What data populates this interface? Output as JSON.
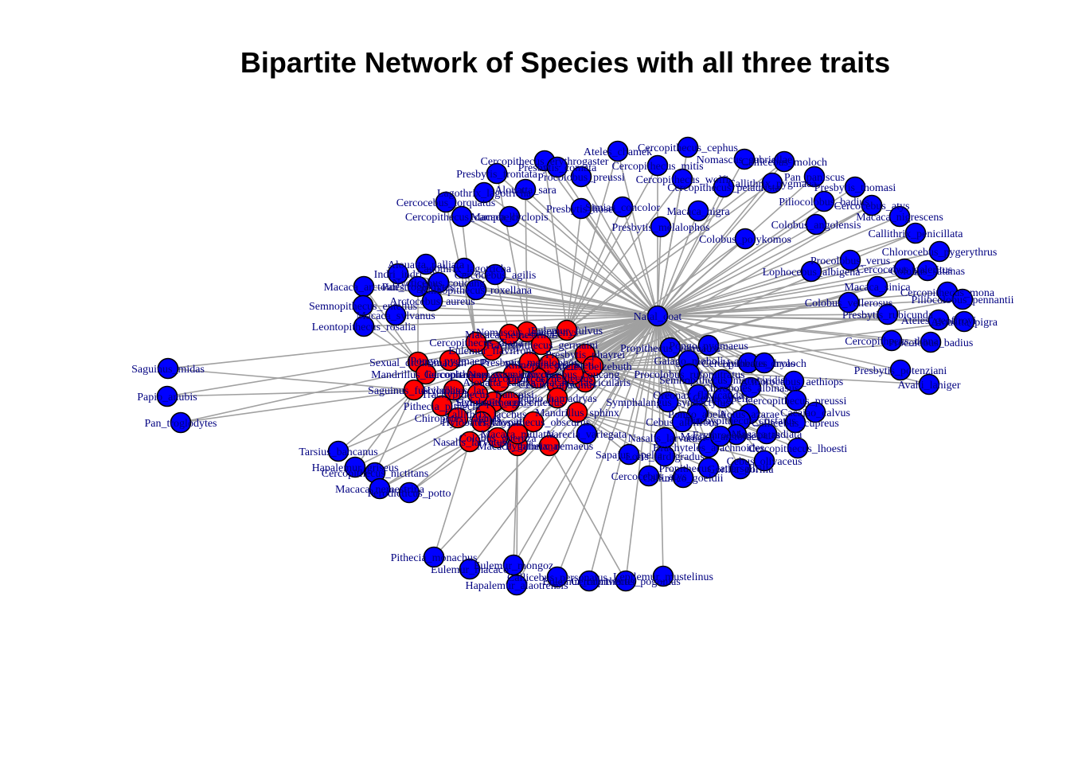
{
  "title": "Bipartite Network of Species with all three traits",
  "colors": {
    "trait": "#ff0000",
    "species": "#0000ff",
    "edge": "#a0a0a0",
    "label": "#000080"
  },
  "trait_nodes": [
    {
      "id": "T01",
      "label": "Natal_coat"
    },
    {
      "id": "T02",
      "label": "Sexual_dichromatism"
    },
    {
      "id": "T03",
      "label": "Mandrillus_leucophaeus"
    },
    {
      "id": "T04",
      "label": "Cercopithecus_ascanius"
    },
    {
      "id": "T05",
      "label": "Nomascus_leucogenys"
    },
    {
      "id": "T06",
      "label": "Macaca_nemestrina"
    },
    {
      "id": "T07",
      "label": "Eulemur_flavifrons"
    },
    {
      "id": "T08",
      "label": "Eulemur_fulvus"
    },
    {
      "id": "T09",
      "label": "Presbytis_phayrei"
    },
    {
      "id": "T10",
      "label": "Trachypithecus_germaini"
    },
    {
      "id": "T11",
      "label": "Nomascus_concolor"
    },
    {
      "id": "T12",
      "label": "Cercopithecus_diana"
    },
    {
      "id": "T13",
      "label": "Pongo_pygmaeus"
    },
    {
      "id": "T14",
      "label": "Saguinus_fuscicollis"
    },
    {
      "id": "T15",
      "label": "Hylobates_lar"
    },
    {
      "id": "T16",
      "label": "Pithecia_pithecia"
    },
    {
      "id": "T17",
      "label": "Chiropotes_satanas"
    },
    {
      "id": "T18",
      "label": "Mandrillus_sphinx"
    },
    {
      "id": "T19",
      "label": "Macaca_fascicularis"
    },
    {
      "id": "T20",
      "label": "Nasalis_larvatus"
    },
    {
      "id": "T21",
      "label": "Macaca_thibetana"
    },
    {
      "id": "T22",
      "label": "Rhinopithecus_bieti"
    },
    {
      "id": "T23",
      "label": "Cebus_capucinus"
    },
    {
      "id": "T24",
      "label": "Alouatta_caraya"
    },
    {
      "id": "T25",
      "label": "Cercopithecus_neglectus"
    },
    {
      "id": "T26",
      "label": "Trachypithecus_obscurus"
    },
    {
      "id": "T27",
      "label": "Hylobates_agilis"
    },
    {
      "id": "T28",
      "label": "Papio_hamadryas"
    },
    {
      "id": "T29",
      "label": "Semnopithecus_entellus"
    },
    {
      "id": "T30",
      "label": "Callithrix_jacchus"
    },
    {
      "id": "T31",
      "label": "Macaca_mulatta"
    },
    {
      "id": "T32",
      "label": "Ateles_belzebuth"
    },
    {
      "id": "T33",
      "label": "Pygathrix_nemaeus"
    },
    {
      "id": "T34",
      "label": "Trachypithecus_francoisi"
    },
    {
      "id": "T35",
      "label": "Nycticebus_coucang"
    },
    {
      "id": "T36",
      "label": "Presbytis_melalophos"
    },
    {
      "id": "T37",
      "label": "Hylobates_klossii"
    },
    {
      "id": "T38",
      "label": "Colobus_guereza"
    }
  ],
  "species_nodes": [
    {
      "id": "S001",
      "label": "Ateles_chamek"
    },
    {
      "id": "S002",
      "label": "Cercopithecus_cephus"
    },
    {
      "id": "S003",
      "label": "Cercopithecus_erythrogaster"
    },
    {
      "id": "S004",
      "label": "Presbytis_comata"
    },
    {
      "id": "S005",
      "label": "Cercopithecus_mitis"
    },
    {
      "id": "S006",
      "label": "Nomascus_gabriellae"
    },
    {
      "id": "S007",
      "label": "Callicebus_moloch"
    },
    {
      "id": "S008",
      "label": "Pan_paniscus"
    },
    {
      "id": "S009",
      "label": "Presbytis_frontata"
    },
    {
      "id": "S010",
      "label": "Procolobus_preussi"
    },
    {
      "id": "S011",
      "label": "Cercopithecus_wolfi"
    },
    {
      "id": "S012",
      "label": "Cercopithecus_petaurista"
    },
    {
      "id": "S013",
      "label": "Callithrix_pygmaea"
    },
    {
      "id": "S014",
      "label": "Presbytis_thomasi"
    },
    {
      "id": "S015",
      "label": "Alouatta_sara"
    },
    {
      "id": "S016",
      "label": "Lagothrix_lagotricha"
    },
    {
      "id": "S017",
      "label": "Simias_concolor"
    },
    {
      "id": "S018",
      "label": "Piliocolobus_badius"
    },
    {
      "id": "S019",
      "label": "Cercocebus_torquatus"
    },
    {
      "id": "S020",
      "label": "Macaca_nigra"
    },
    {
      "id": "S021",
      "label": "Cercocebus_atys"
    },
    {
      "id": "S022",
      "label": "Macaca_nigrescens"
    },
    {
      "id": "S023",
      "label": "Cercopithecus_campbelli"
    },
    {
      "id": "S024",
      "label": "Macaca_cyclopis"
    },
    {
      "id": "S025",
      "label": "Presbytis_hosei"
    },
    {
      "id": "S026",
      "label": "Presbytis_melalophos"
    },
    {
      "id": "S027",
      "label": "Colobus_polykomos"
    },
    {
      "id": "S028",
      "label": "Colobus_angolensis"
    },
    {
      "id": "S029",
      "label": "Callithrix_penicillata"
    },
    {
      "id": "S030",
      "label": "Chlorocebus_pygerythrus"
    },
    {
      "id": "S031",
      "label": "Procolobus_verus"
    },
    {
      "id": "S032",
      "label": "Cercocebus_galeritus"
    },
    {
      "id": "S033",
      "label": "Colobus_satanas"
    },
    {
      "id": "S034",
      "label": "Lophocebus_albigena"
    },
    {
      "id": "S035",
      "label": "Macaca_sinica"
    },
    {
      "id": "S036",
      "label": "Cercopithecus_mona"
    },
    {
      "id": "S037",
      "label": "Piliocolobus_pennantii"
    },
    {
      "id": "S038",
      "label": "Colobus_vellerosus"
    },
    {
      "id": "S039",
      "label": "Presbytis_rubicunda"
    },
    {
      "id": "S040",
      "label": "Ateles_geoffroyi"
    },
    {
      "id": "S041",
      "label": "Alouatta_pigra"
    },
    {
      "id": "S042",
      "label": "Cercopithecus_diana"
    },
    {
      "id": "S043",
      "label": "Procolobus_badius"
    },
    {
      "id": "S044",
      "label": "Presbytis_potenziani"
    },
    {
      "id": "S045",
      "label": "Avahi_laniger"
    },
    {
      "id": "S046",
      "label": "Alouatta_palliata"
    },
    {
      "id": "S047",
      "label": "Lagothrix_lagotricha"
    },
    {
      "id": "S048",
      "label": "Indri_indri"
    },
    {
      "id": "S049",
      "label": "Cercocebus_agilis"
    },
    {
      "id": "S050",
      "label": "Nycticebus_coucang"
    },
    {
      "id": "S051",
      "label": "Pan_troglodytes"
    },
    {
      "id": "S052",
      "label": "Rhinopithecus_roxellana"
    },
    {
      "id": "S053",
      "label": "Macaca_arctoides"
    },
    {
      "id": "S054",
      "label": "Arctocebus_aureus"
    },
    {
      "id": "S055",
      "label": "Semnopithecus_entellus"
    },
    {
      "id": "S056",
      "label": "Macaca_sylvanus"
    },
    {
      "id": "S057",
      "label": "Leontopithecus_rosalia"
    },
    {
      "id": "S058",
      "label": "Saguinus_midas"
    },
    {
      "id": "S059",
      "label": "Papio_anubis"
    },
    {
      "id": "S060",
      "label": "Pan_troglodytes"
    },
    {
      "id": "S061",
      "label": "Tarsius_bancanus"
    },
    {
      "id": "S062",
      "label": "Cercopithecus_nictitans"
    },
    {
      "id": "S063",
      "label": "Hapalemur_griseus"
    },
    {
      "id": "S064",
      "label": "Macaca_nemestrina"
    },
    {
      "id": "S065",
      "label": "Perodicticus_potto"
    },
    {
      "id": "S066",
      "label": "Propithecus_verreauxi"
    },
    {
      "id": "S067",
      "label": "Pongo_pygmaeus"
    },
    {
      "id": "S068",
      "label": "Galago_moholi"
    },
    {
      "id": "S069",
      "label": "Cercopithecus_dryas"
    },
    {
      "id": "S070",
      "label": "Semnopithecus_nigroviridis"
    },
    {
      "id": "S071",
      "label": "Hylobates_moloch"
    },
    {
      "id": "S072",
      "label": "Chlorocebus_aethiops"
    },
    {
      "id": "S073",
      "label": "Procolobus_rufomitratus"
    },
    {
      "id": "S074",
      "label": "Symphalangus_syndactylus"
    },
    {
      "id": "S075",
      "label": "Oreonax_flavicauda"
    },
    {
      "id": "S076",
      "label": "Chiropotes_albinasus"
    },
    {
      "id": "S077",
      "label": "Cercopithecus_preussi"
    },
    {
      "id": "S078",
      "label": "Cebus_apella"
    },
    {
      "id": "S079",
      "label": "Aotus_azarae"
    },
    {
      "id": "S080",
      "label": "Cacajao_calvus"
    },
    {
      "id": "S081",
      "label": "Pongo_abelii"
    },
    {
      "id": "S082",
      "label": "Callicebus_cupreus"
    },
    {
      "id": "S083",
      "label": "Cebus_albifrons"
    },
    {
      "id": "S084",
      "label": "Trachypithecus_cristatus"
    },
    {
      "id": "S085",
      "label": "Macaca_radiata"
    },
    {
      "id": "S086",
      "label": "Erythrocebus_patas"
    },
    {
      "id": "S087",
      "label": "Cercopithecus_lhoesti"
    },
    {
      "id": "S088",
      "label": "Brachyteles_arachnoides"
    },
    {
      "id": "S089",
      "label": "Cebus_olivaceus"
    },
    {
      "id": "S090",
      "label": "Loris_tardigradus"
    },
    {
      "id": "S091",
      "label": "Sapajus_apella"
    },
    {
      "id": "S092",
      "label": "Gorilla_gorilla"
    },
    {
      "id": "S093",
      "label": "Callimico_goeldii"
    },
    {
      "id": "S094",
      "label": "Cercocebus_atys"
    },
    {
      "id": "S095",
      "label": "Propithecus_tattersalli"
    },
    {
      "id": "S096",
      "label": "Varecia_variegata"
    },
    {
      "id": "S097",
      "label": "Pithecia_monachus"
    },
    {
      "id": "S098",
      "label": "Eulemur_macaco"
    },
    {
      "id": "S099",
      "label": "Eulemur_mongoz"
    },
    {
      "id": "S100",
      "label": "Callicebus_personatus"
    },
    {
      "id": "S101",
      "label": "Hapalemur_alaotrensis"
    },
    {
      "id": "S102",
      "label": "Eulemur_rubriventer"
    },
    {
      "id": "S103",
      "label": "Cercopithecus_pogonias"
    },
    {
      "id": "S104",
      "label": "Lepilemur_mustelinus"
    },
    {
      "id": "S105",
      "label": "Macaca_arctoides"
    },
    {
      "id": "S106",
      "label": "Nasalis_larvatus"
    },
    {
      "id": "S107",
      "label": "Trachypithecus_francoisi"
    },
    {
      "id": "S108",
      "label": "Trachypithecus_vetulus"
    },
    {
      "id": "S109",
      "label": "Trachypithecus_auratus"
    },
    {
      "id": "S110",
      "label": "Galago_senegalensis"
    },
    {
      "id": "S111",
      "label": "Macaca_leonina"
    },
    {
      "id": "S112",
      "label": "Cercopithecus_sclateri"
    },
    {
      "id": "S113",
      "label": "Trachypithecus_delacouri"
    },
    {
      "id": "S114",
      "label": "Trachypithecus_johnii"
    },
    {
      "id": "S115",
      "label": "Macaca_fuscata"
    },
    {
      "id": "S116",
      "label": "Rhinopithecus_avunculus"
    },
    {
      "id": "S117",
      "label": "Cebus_olivaceus"
    },
    {
      "id": "S118",
      "label": "Cebus_capucinus"
    },
    {
      "id": "S119",
      "label": "Pithecia_aequatorialis"
    },
    {
      "id": "S120",
      "label": "Saguinus_oedipus"
    },
    {
      "id": "S121",
      "label": "Saimiri_sciureus"
    },
    {
      "id": "S122",
      "label": "Eulemur_coronatus"
    },
    {
      "id": "S123",
      "label": "Alouatta_seniculus"
    },
    {
      "id": "S124",
      "label": "Saimiri_oerstedii"
    },
    {
      "id": "S125",
      "label": "Eulemur_mongoz"
    },
    {
      "id": "S126",
      "label": "Callicebus_cinerascens"
    }
  ]
}
